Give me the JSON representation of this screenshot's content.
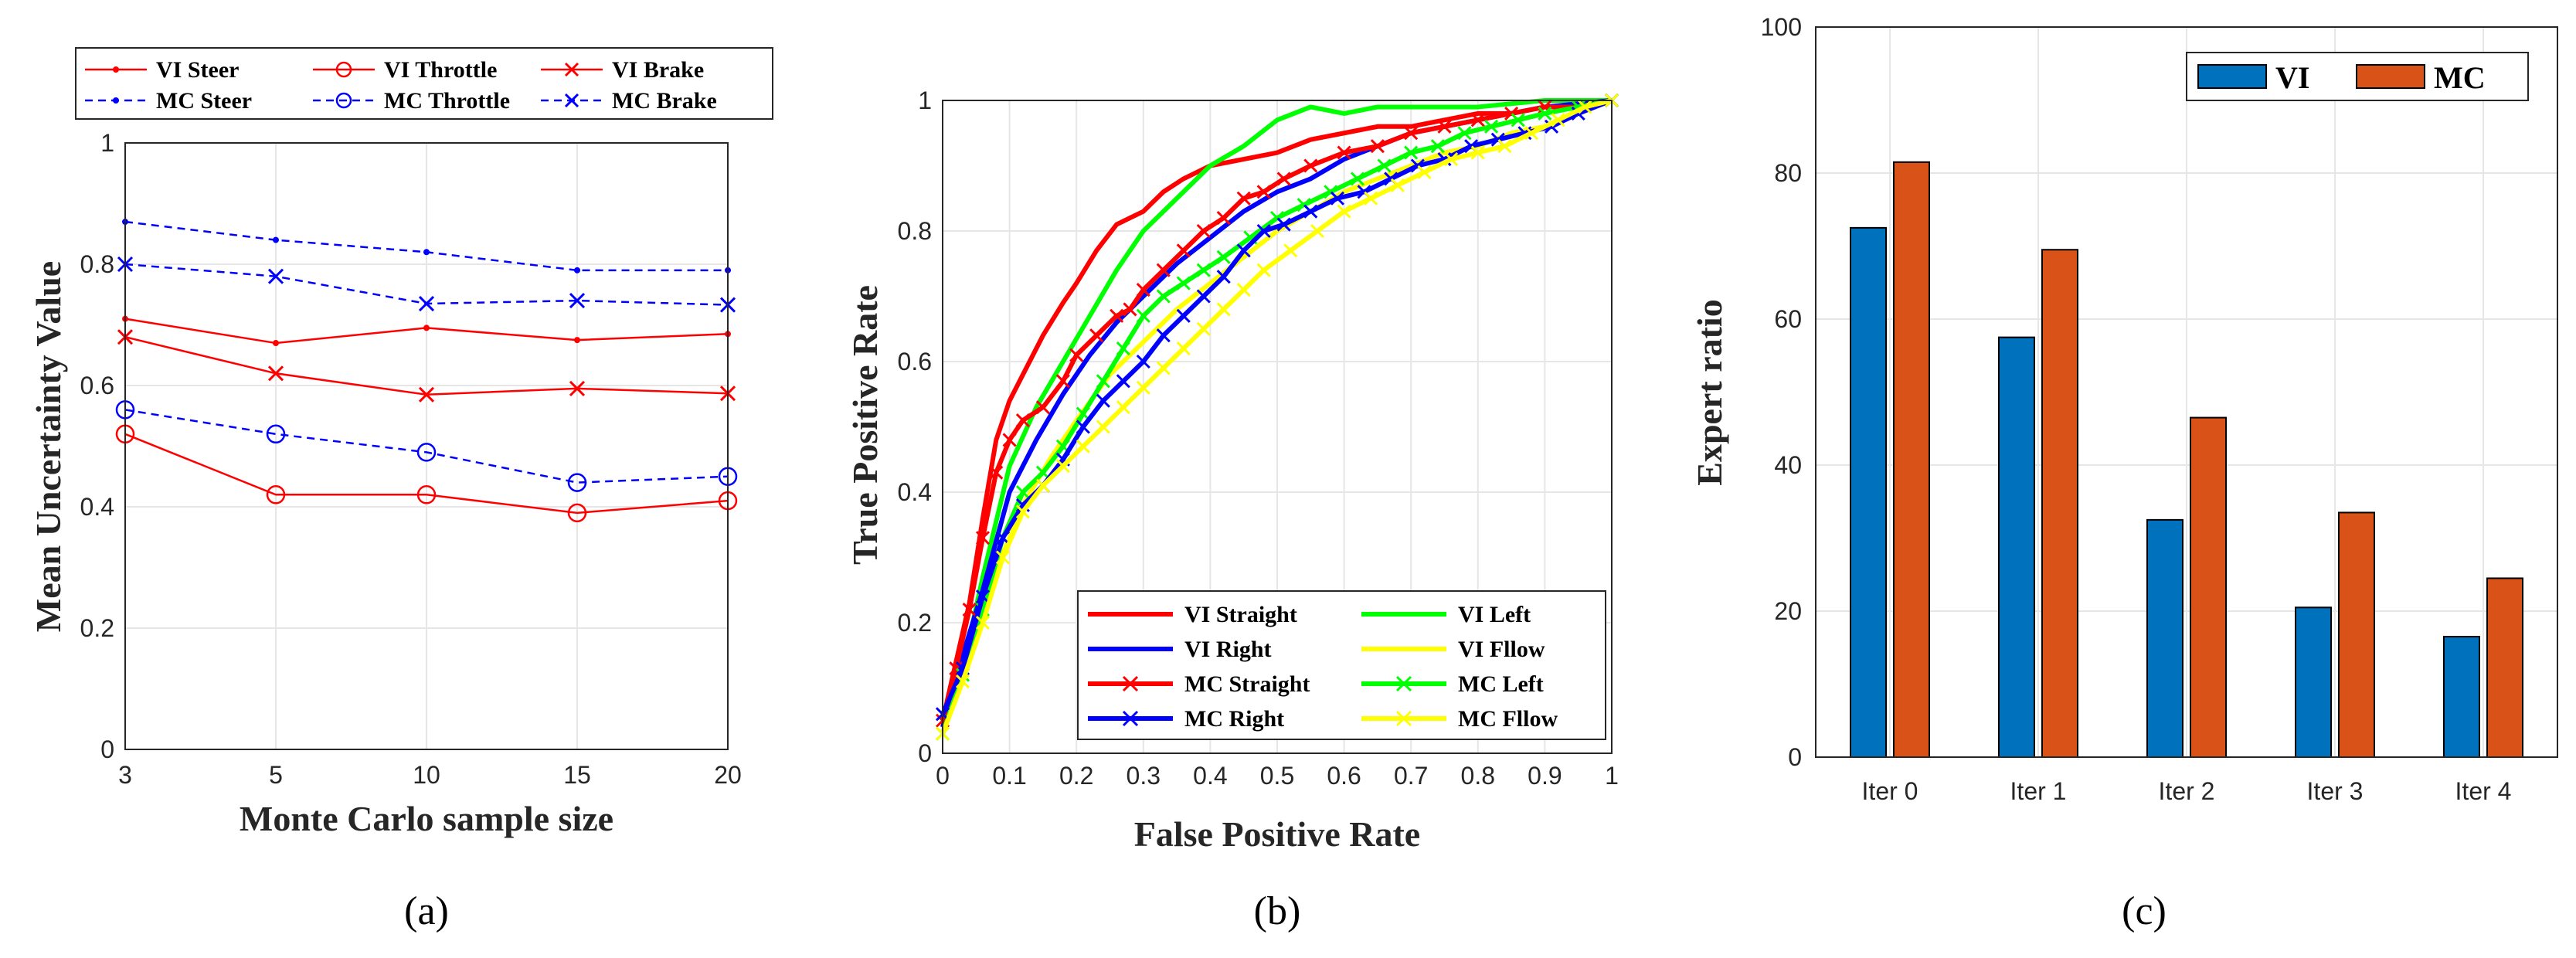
{
  "chart_data": [
    {
      "id": "a",
      "type": "line",
      "caption": "(a)",
      "title": "",
      "xlabel": "Monte Carlo sample size",
      "ylabel": "Mean Uncertainty Value",
      "categories": [
        "3",
        "5",
        "10",
        "15",
        "20"
      ],
      "ylim": [
        0,
        1
      ],
      "yticks": [
        "0",
        "0.2",
        "0.4",
        "0.6",
        "0.8",
        "1"
      ],
      "grid": true,
      "legend_position": "top",
      "series": [
        {
          "name": "VI Steer",
          "color": "#ff0000",
          "dash": "solid",
          "marker": "dot",
          "values": [
            0.71,
            0.67,
            0.695,
            0.675,
            0.685
          ]
        },
        {
          "name": "VI Throttle",
          "color": "#ff0000",
          "dash": "solid",
          "marker": "circle",
          "values": [
            0.52,
            0.42,
            0.42,
            0.39,
            0.41
          ]
        },
        {
          "name": "VI Brake",
          "color": "#ff0000",
          "dash": "solid",
          "marker": "x",
          "values": [
            0.68,
            0.62,
            0.585,
            0.595,
            0.587
          ]
        },
        {
          "name": "MC Steer",
          "color": "#0000ff",
          "dash": "dashed",
          "marker": "dot",
          "values": [
            0.87,
            0.84,
            0.82,
            0.79,
            0.79
          ]
        },
        {
          "name": "MC Throttle",
          "color": "#0000ff",
          "dash": "dashed",
          "marker": "circle",
          "values": [
            0.56,
            0.52,
            0.49,
            0.44,
            0.45
          ]
        },
        {
          "name": "MC Brake",
          "color": "#0000ff",
          "dash": "dashed",
          "marker": "x",
          "values": [
            0.8,
            0.78,
            0.735,
            0.74,
            0.733
          ]
        }
      ]
    },
    {
      "id": "b",
      "type": "line",
      "caption": "(b)",
      "title": "",
      "xlabel": "False Positive Rate",
      "ylabel": "True Positive Rate",
      "xlim": [
        0,
        1
      ],
      "ylim": [
        0,
        1
      ],
      "xticks": [
        "0",
        "0.1",
        "0.2",
        "0.3",
        "0.4",
        "0.5",
        "0.6",
        "0.7",
        "0.8",
        "0.9",
        "1"
      ],
      "yticks": [
        "0",
        "0.2",
        "0.4",
        "0.6",
        "0.8",
        "1"
      ],
      "grid": true,
      "legend_position": "bottom-right",
      "series": [
        {
          "name": "VI Straight",
          "color": "#ff0000",
          "marker": "none",
          "x": [
            0,
            0.02,
            0.04,
            0.06,
            0.08,
            0.1,
            0.12,
            0.15,
            0.18,
            0.2,
            0.23,
            0.26,
            0.28,
            0.3,
            0.33,
            0.36,
            0.4,
            0.45,
            0.5,
            0.55,
            0.6,
            0.65,
            0.7,
            0.75,
            0.8,
            0.85,
            0.9,
            0.95,
            1.0
          ],
          "y": [
            0.05,
            0.14,
            0.23,
            0.36,
            0.48,
            0.54,
            0.58,
            0.64,
            0.69,
            0.72,
            0.77,
            0.81,
            0.82,
            0.83,
            0.86,
            0.88,
            0.9,
            0.91,
            0.92,
            0.94,
            0.95,
            0.96,
            0.96,
            0.97,
            0.98,
            0.98,
            0.99,
            0.99,
            1.0
          ]
        },
        {
          "name": "VI Left",
          "color": "#00ff00",
          "marker": "none",
          "x": [
            0,
            0.03,
            0.06,
            0.1,
            0.14,
            0.18,
            0.22,
            0.26,
            0.3,
            0.35,
            0.4,
            0.45,
            0.5,
            0.55,
            0.6,
            0.65,
            0.7,
            0.75,
            0.8,
            0.9,
            1.0
          ],
          "y": [
            0.03,
            0.13,
            0.27,
            0.44,
            0.53,
            0.6,
            0.67,
            0.74,
            0.8,
            0.85,
            0.9,
            0.93,
            0.97,
            0.99,
            0.98,
            0.99,
            0.99,
            0.99,
            0.99,
            1.0,
            1.0
          ]
        },
        {
          "name": "VI Right",
          "color": "#0000ff",
          "marker": "none",
          "x": [
            0,
            0.03,
            0.06,
            0.1,
            0.14,
            0.18,
            0.22,
            0.26,
            0.3,
            0.35,
            0.4,
            0.45,
            0.5,
            0.55,
            0.6,
            0.65,
            0.7,
            0.75,
            0.8,
            0.9,
            1.0
          ],
          "y": [
            0.04,
            0.15,
            0.25,
            0.4,
            0.48,
            0.55,
            0.61,
            0.66,
            0.7,
            0.75,
            0.79,
            0.83,
            0.86,
            0.88,
            0.91,
            0.93,
            0.95,
            0.96,
            0.97,
            0.99,
            1.0
          ]
        },
        {
          "name": "VI Fllow",
          "color": "#ffff00",
          "marker": "none",
          "x": [
            0,
            0.04,
            0.08,
            0.12,
            0.16,
            0.2,
            0.25,
            0.3,
            0.35,
            0.4,
            0.45,
            0.5,
            0.55,
            0.6,
            0.65,
            0.7,
            0.75,
            0.8,
            0.85,
            0.9,
            0.95,
            1.0
          ],
          "y": [
            0.03,
            0.15,
            0.28,
            0.38,
            0.45,
            0.51,
            0.58,
            0.63,
            0.68,
            0.72,
            0.76,
            0.8,
            0.83,
            0.86,
            0.88,
            0.9,
            0.92,
            0.93,
            0.95,
            0.96,
            0.98,
            1.0
          ]
        },
        {
          "name": "MC Straight",
          "color": "#ff0000",
          "marker": "x",
          "x": [
            0,
            0.02,
            0.04,
            0.06,
            0.08,
            0.1,
            0.12,
            0.15,
            0.18,
            0.2,
            0.23,
            0.26,
            0.28,
            0.3,
            0.33,
            0.36,
            0.39,
            0.42,
            0.45,
            0.48,
            0.51,
            0.55,
            0.6,
            0.65,
            0.7,
            0.75,
            0.8,
            0.85,
            0.9,
            0.95,
            1.0
          ],
          "y": [
            0.05,
            0.13,
            0.22,
            0.33,
            0.43,
            0.48,
            0.51,
            0.53,
            0.57,
            0.61,
            0.64,
            0.67,
            0.68,
            0.71,
            0.74,
            0.77,
            0.8,
            0.82,
            0.85,
            0.86,
            0.88,
            0.9,
            0.92,
            0.93,
            0.95,
            0.96,
            0.97,
            0.98,
            0.99,
            0.99,
            1.0
          ]
        },
        {
          "name": "MC Left",
          "color": "#00ff00",
          "marker": "x",
          "x": [
            0,
            0.03,
            0.06,
            0.09,
            0.12,
            0.15,
            0.18,
            0.21,
            0.24,
            0.27,
            0.3,
            0.33,
            0.36,
            0.39,
            0.42,
            0.46,
            0.5,
            0.54,
            0.58,
            0.62,
            0.66,
            0.7,
            0.74,
            0.78,
            0.82,
            0.86,
            0.9,
            0.95,
            1.0
          ],
          "y": [
            0.03,
            0.12,
            0.22,
            0.33,
            0.4,
            0.43,
            0.47,
            0.52,
            0.57,
            0.62,
            0.67,
            0.7,
            0.72,
            0.74,
            0.76,
            0.79,
            0.82,
            0.84,
            0.86,
            0.88,
            0.9,
            0.92,
            0.93,
            0.95,
            0.96,
            0.97,
            0.98,
            0.99,
            1.0
          ]
        },
        {
          "name": "MC Right",
          "color": "#0000ff",
          "marker": "x",
          "x": [
            0,
            0.03,
            0.06,
            0.09,
            0.12,
            0.15,
            0.18,
            0.21,
            0.24,
            0.27,
            0.3,
            0.33,
            0.36,
            0.39,
            0.42,
            0.45,
            0.48,
            0.51,
            0.55,
            0.59,
            0.63,
            0.67,
            0.71,
            0.75,
            0.79,
            0.83,
            0.87,
            0.91,
            0.95,
            1.0
          ],
          "y": [
            0.06,
            0.13,
            0.24,
            0.33,
            0.38,
            0.41,
            0.45,
            0.5,
            0.54,
            0.57,
            0.6,
            0.64,
            0.67,
            0.7,
            0.73,
            0.77,
            0.8,
            0.81,
            0.83,
            0.85,
            0.86,
            0.88,
            0.9,
            0.91,
            0.93,
            0.94,
            0.95,
            0.96,
            0.98,
            1.0
          ]
        },
        {
          "name": "MC Fllow",
          "color": "#ffff00",
          "marker": "x",
          "x": [
            0,
            0.03,
            0.06,
            0.09,
            0.12,
            0.15,
            0.18,
            0.21,
            0.24,
            0.27,
            0.3,
            0.33,
            0.36,
            0.39,
            0.42,
            0.45,
            0.48,
            0.52,
            0.56,
            0.6,
            0.64,
            0.68,
            0.72,
            0.76,
            0.8,
            0.84,
            0.88,
            0.92,
            0.96,
            1.0
          ],
          "y": [
            0.03,
            0.11,
            0.2,
            0.3,
            0.37,
            0.41,
            0.44,
            0.47,
            0.5,
            0.53,
            0.56,
            0.59,
            0.62,
            0.65,
            0.68,
            0.71,
            0.74,
            0.77,
            0.8,
            0.83,
            0.85,
            0.87,
            0.89,
            0.91,
            0.92,
            0.93,
            0.95,
            0.97,
            0.99,
            1.0
          ]
        }
      ]
    },
    {
      "id": "c",
      "type": "bar",
      "caption": "(c)",
      "title": "",
      "xlabel": "",
      "ylabel": "Expert ratio",
      "categories": [
        "Iter 0",
        "Iter 1",
        "Iter 2",
        "Iter 3",
        "Iter 4"
      ],
      "ylim": [
        0,
        100
      ],
      "yticks": [
        "0",
        "20",
        "40",
        "60",
        "80",
        "100"
      ],
      "grid": true,
      "legend_position": "top-right",
      "series": [
        {
          "name": "VI",
          "color": "#0072bd",
          "values": [
            72.5,
            57.5,
            32.5,
            20.5,
            16.5
          ]
        },
        {
          "name": "MC",
          "color": "#d95319",
          "values": [
            81.5,
            69.5,
            46.5,
            33.5,
            24.5
          ]
        }
      ]
    }
  ]
}
